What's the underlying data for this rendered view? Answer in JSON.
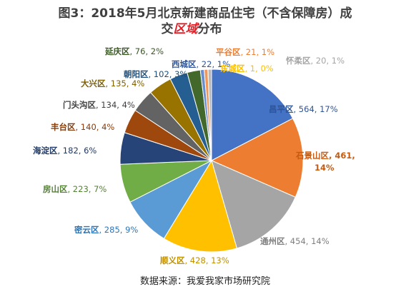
{
  "chart_data": {
    "type": "pie",
    "title_part1": "图3：2018年5月北京新建商品住宅（不含保障房）成",
    "title_part2_a": "交",
    "title_part2_b": "区域",
    "title_part2_c": "分布",
    "source": "数据来源：我爱我家市场研究院",
    "start_angle_deg": 0,
    "direction": "clockwise",
    "slices": [
      {
        "name": "昌平区",
        "value": 564,
        "pct": "17%",
        "color": "#4472c4",
        "label_color": "#2f5597",
        "label": "昌平区, 564, 17%"
      },
      {
        "name": "石景山区",
        "value": 461,
        "pct": "14%",
        "color": "#ed7d31",
        "label_color": "#c55a11",
        "label": "石景山区, 461, 14%"
      },
      {
        "name": "通州区",
        "value": 454,
        "pct": "14%",
        "color": "#a5a5a5",
        "label_color": "#7f7f7f",
        "label": "通州区, 454, 14%"
      },
      {
        "name": "顺义区",
        "value": 428,
        "pct": "13%",
        "color": "#ffc000",
        "label_color": "#bf8f00",
        "label": "顺义区, 428, 13%"
      },
      {
        "name": "密云区",
        "value": 285,
        "pct": "9%",
        "color": "#5b9bd5",
        "label_color": "#2e75b6",
        "label": "密云区, 285, 9%"
      },
      {
        "name": "房山区",
        "value": 223,
        "pct": "7%",
        "color": "#70ad47",
        "label_color": "#548235",
        "label": "房山区, 223, 7%"
      },
      {
        "name": "海淀区",
        "value": 182,
        "pct": "6%",
        "color": "#264478",
        "label_color": "#1f3864",
        "label": "海淀区, 182, 6%"
      },
      {
        "name": "丰台区",
        "value": 140,
        "pct": "4%",
        "color": "#9e480e",
        "label_color": "#843c0c",
        "label": "丰台区, 140, 4%"
      },
      {
        "name": "门头沟区",
        "value": 134,
        "pct": "4%",
        "color": "#636363",
        "label_color": "#404040",
        "label": "门头沟区, 134, 4%"
      },
      {
        "name": "大兴区",
        "value": 135,
        "pct": "4%",
        "color": "#997300",
        "label_color": "#7f6000",
        "label": "大兴区, 135, 4%"
      },
      {
        "name": "朝阳区",
        "value": 102,
        "pct": "3%",
        "color": "#255e91",
        "label_color": "#1f4e79",
        "label": "朝阳区, 102, 3%"
      },
      {
        "name": "延庆区",
        "value": 76,
        "pct": "2%",
        "color": "#43682b",
        "label_color": "#385723",
        "label": "延庆区, 76, 2%"
      },
      {
        "name": "西城区",
        "value": 22,
        "pct": "1%",
        "color": "#698ed0",
        "label_color": "#2f5597",
        "label": "西城区, 22, 1%"
      },
      {
        "name": "平谷区",
        "value": 21,
        "pct": "1%",
        "color": "#f1975a",
        "label_color": "#ed7d31",
        "label": "平谷区, 21, 1%"
      },
      {
        "name": "东城区",
        "value": 1,
        "pct": "0%",
        "color": "#ffcd33",
        "label_color": "#ffc000",
        "label": "东城区, 1, 0%"
      },
      {
        "name": "怀柔区",
        "value": 20,
        "pct": "1%",
        "color": "#b7b7b7",
        "label_color": "#a5a5a5",
        "label": "怀柔区, 20, 1%"
      }
    ]
  }
}
